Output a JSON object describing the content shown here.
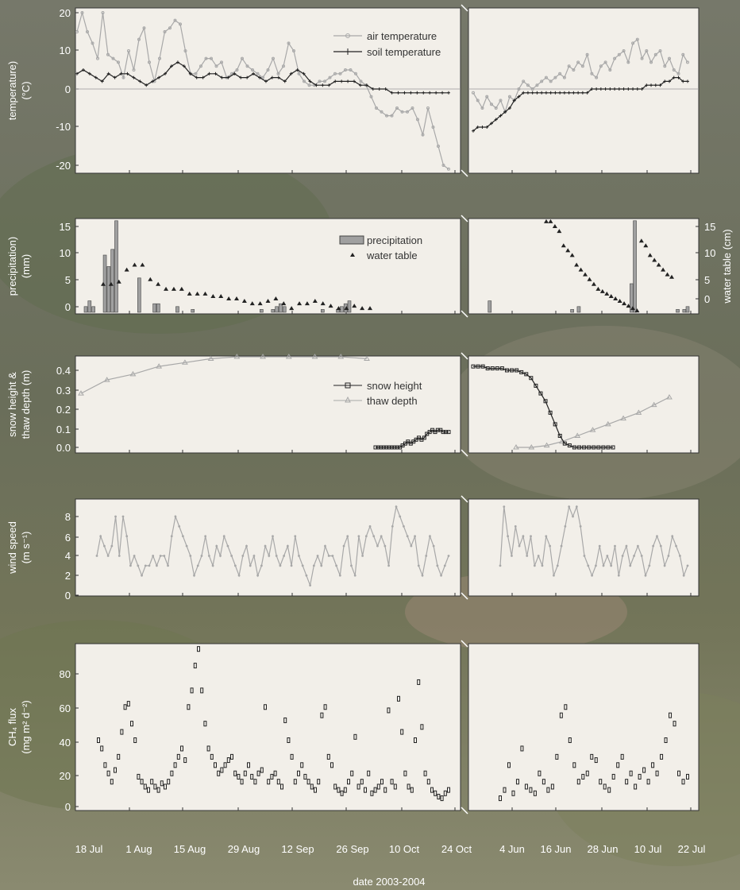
{
  "figure": {
    "xlabel": "date 2003-2004",
    "xticks_left": [
      "18 Jul",
      "1 Aug",
      "15 Aug",
      "29 Aug",
      "12 Sep",
      "26 Sep",
      "10 Oct",
      "24 Oct"
    ],
    "xticks_right": [
      "4 Jun",
      "16 Jun",
      "28 Jun",
      "10 Jul",
      "22 Jul"
    ],
    "colors": {
      "panel_bg": "#f2efe9",
      "gray_series": "#a8a8a8",
      "black_series": "#222222",
      "bar_fill": "#a0a0a0"
    }
  },
  "chart_data": [
    {
      "type": "line",
      "ylabel": [
        "temperature)",
        "(°C)"
      ],
      "yticks": [
        "20",
        "10",
        "0",
        "-10",
        "-20"
      ],
      "ylim": [
        -22,
        22
      ],
      "legend": [
        "air temperature",
        "soil temperature"
      ],
      "series": [
        {
          "name": "air temperature",
          "left": [
            15,
            20,
            15,
            12,
            8,
            20,
            9,
            8,
            7,
            3,
            10,
            5,
            13,
            16,
            7,
            2,
            8,
            15,
            16,
            18,
            17,
            10,
            4,
            4,
            6,
            8,
            8,
            6,
            7,
            3,
            4,
            5,
            8,
            6,
            5,
            4,
            3,
            5,
            8,
            4,
            6,
            12,
            10,
            4,
            2,
            1,
            1,
            2,
            2,
            3,
            4,
            4,
            5,
            5,
            4,
            2,
            1,
            -2,
            -5,
            -6,
            -7,
            -7,
            -5,
            -6,
            -6,
            -5,
            -8,
            -12,
            -5,
            -10,
            -15,
            -20,
            -21
          ],
          "right": [
            -1,
            -3,
            -5,
            -2,
            -4,
            -5,
            -3,
            -6,
            -2,
            -3,
            0,
            2,
            1,
            0,
            1,
            2,
            3,
            2,
            3,
            4,
            3,
            6,
            5,
            7,
            6,
            9,
            4,
            3,
            6,
            7,
            5,
            8,
            9,
            10,
            7,
            12,
            13,
            8,
            10,
            7,
            9,
            10,
            6,
            8,
            5,
            4,
            9,
            7
          ]
        },
        {
          "name": "soil temperature",
          "left": [
            4,
            5,
            4,
            3,
            2,
            4,
            3,
            4,
            4,
            3,
            2,
            1,
            2,
            3,
            4,
            6,
            7,
            6,
            4,
            3,
            3,
            4,
            4,
            3,
            3,
            4,
            3,
            3,
            4,
            3,
            2,
            3,
            3,
            2,
            4,
            5,
            4,
            2,
            1,
            1,
            1,
            2,
            2,
            2,
            2,
            1,
            1,
            0,
            0,
            0,
            -1,
            -1,
            -1,
            -1,
            -1,
            -1,
            -1,
            -1,
            -1,
            -1
          ],
          "right": [
            -11,
            -10,
            -10,
            -10,
            -9,
            -8,
            -7,
            -6,
            -5,
            -3,
            -2,
            -1,
            -1,
            -1,
            -1,
            -1,
            -1,
            -1,
            -1,
            -1,
            -1,
            -1,
            -1,
            -1,
            -1,
            -1,
            0,
            0,
            0,
            0,
            0,
            0,
            0,
            0,
            0,
            0,
            0,
            0,
            1,
            1,
            1,
            1,
            2,
            2,
            3,
            3,
            2,
            2
          ]
        }
      ]
    },
    {
      "type": "bar",
      "ylabel": [
        "precipitation)",
        "(mm)"
      ],
      "yticks": [
        "15",
        "10",
        "5",
        "0"
      ],
      "ylim": [
        0,
        17
      ],
      "y2label": "water table (cm)",
      "y2ticks": [
        "15",
        "10",
        "5",
        "0"
      ],
      "y2lim": [
        -5,
        17
      ],
      "legend": [
        "precipitation",
        "water table"
      ],
      "series": [
        {
          "name": "precipitation",
          "left": [
            1,
            2,
            1,
            0,
            0,
            10,
            8,
            11,
            16,
            0,
            0,
            0,
            0,
            0,
            6,
            0,
            0,
            0,
            1.5,
            1.5,
            0,
            0,
            0,
            0,
            1,
            0,
            0,
            0,
            0.5,
            0,
            0,
            0,
            0,
            0,
            0,
            0,
            0,
            0,
            0,
            0,
            0,
            0,
            0,
            0,
            0,
            0,
            0.5,
            0,
            0,
            0.5,
            1,
            1.5,
            1,
            0,
            0,
            0,
            0,
            0,
            0,
            0,
            0,
            0,
            0.5,
            0,
            0,
            0,
            0.5,
            1,
            1.5,
            2
          ],
          "right": [
            0,
            0,
            0,
            0,
            0,
            2,
            0,
            0,
            0,
            0,
            0,
            0,
            0,
            0,
            0,
            0,
            0,
            0,
            0,
            0,
            0,
            0,
            0,
            0,
            0,
            0,
            0,
            0,
            0,
            0,
            0.5,
            0,
            1,
            0,
            0,
            0,
            0,
            0,
            0,
            0,
            0,
            0,
            0,
            0,
            0,
            0,
            0,
            0,
            5,
            16,
            0,
            0,
            0,
            0,
            0,
            0,
            0,
            0,
            0,
            0,
            0,
            0,
            0.5,
            0,
            0.5,
            1
          ]
        },
        {
          "name": "water table",
          "left": [
            3,
            3,
            3.5,
            6,
            7,
            7,
            4,
            3,
            2,
            2,
            2,
            1,
            1,
            1,
            0.5,
            0.5,
            0,
            0,
            -0.5,
            -1,
            -1,
            -0.5,
            0,
            -1,
            -2,
            -1,
            -1,
            -0.5,
            -1,
            -1.5,
            -2,
            -2,
            -1.5,
            -2,
            -2
          ],
          "right": [
            16,
            16,
            15,
            14,
            11,
            10,
            9,
            7,
            6,
            5,
            4,
            3,
            2,
            1.5,
            1,
            0.5,
            0,
            -0.5,
            -1,
            -1.5,
            -2,
            -2.5,
            12,
            11,
            9,
            8,
            7,
            6,
            5,
            4.5
          ]
        }
      ]
    },
    {
      "type": "line",
      "ylabel": [
        "snow height &",
        "thaw depth (m)"
      ],
      "yticks": [
        "0.4",
        "0.3",
        "0.2",
        "0.1",
        "0.0"
      ],
      "ylim": [
        0,
        0.46
      ],
      "legend": [
        "snow height",
        "thaw depth"
      ],
      "series": [
        {
          "name": "snow height",
          "left": [
            0.0,
            0.0,
            0.0,
            0.0,
            0.0,
            0.0,
            0.0,
            0.0,
            0.0,
            0.0,
            0.01,
            0.02,
            0.03,
            0.02,
            0.03,
            0.04,
            0.05,
            0.04,
            0.05,
            0.07,
            0.08,
            0.09,
            0.08,
            0.09,
            0.09,
            0.08,
            0.08,
            0.08
          ],
          "right": [
            0.42,
            0.42,
            0.42,
            0.41,
            0.41,
            0.41,
            0.41,
            0.4,
            0.4,
            0.4,
            0.39,
            0.38,
            0.36,
            0.32,
            0.28,
            0.24,
            0.18,
            0.12,
            0.06,
            0.02,
            0.01,
            0.0,
            0.0,
            0.0,
            0.0,
            0.0,
            0.0,
            0.0,
            0.0,
            0.0
          ]
        },
        {
          "name": "thaw depth",
          "left": [
            0.28,
            0.35,
            0.38,
            0.42,
            0.44,
            0.46,
            0.47,
            0.47,
            0.47,
            0.47,
            0.47,
            0.46
          ],
          "right": [
            0.0,
            0.0,
            0.01,
            0.03,
            0.06,
            0.09,
            0.12,
            0.15,
            0.18,
            0.22,
            0.26
          ]
        }
      ]
    },
    {
      "type": "line",
      "ylabel": [
        "wind speed",
        "(m s⁻¹)"
      ],
      "yticks": [
        "8",
        "6",
        "4",
        "2",
        "0"
      ],
      "ylim": [
        0,
        10
      ],
      "series": [
        {
          "name": "wind speed",
          "left": [
            4,
            6,
            5,
            4,
            5,
            8,
            4,
            8,
            6,
            3,
            4,
            3,
            2,
            3,
            3,
            4,
            3,
            4,
            4,
            3,
            6,
            8,
            7,
            6,
            5,
            4,
            2,
            3,
            4,
            6,
            4,
            3,
            5,
            4,
            6,
            5,
            4,
            3,
            2,
            4,
            5,
            3,
            4,
            2,
            3,
            5,
            4,
            6,
            4,
            3,
            4,
            5,
            3,
            6,
            4,
            3,
            2,
            1,
            3,
            4,
            3,
            5,
            4,
            4,
            3,
            2,
            5,
            6,
            3,
            2,
            6,
            4,
            6,
            7,
            6,
            5,
            6,
            5,
            3,
            7,
            9,
            8,
            7,
            6,
            5,
            6,
            3,
            2,
            4,
            6,
            5,
            3,
            2,
            3,
            4
          ],
          "right": [
            3,
            9,
            6,
            4,
            7,
            5,
            6,
            4,
            6,
            3,
            4,
            3,
            6,
            5,
            2,
            3,
            5,
            7,
            9,
            8,
            9,
            7,
            4,
            3,
            2,
            3,
            5,
            3,
            4,
            3,
            5,
            2,
            4,
            5,
            3,
            4,
            5,
            4,
            2,
            3,
            5,
            6,
            5,
            3,
            4,
            6,
            5,
            4,
            2,
            3
          ]
        }
      ]
    },
    {
      "type": "scatter",
      "ylabel": [
        "CH₄ flux",
        "(mg m² d⁻²)"
      ],
      "yticks": [
        "80",
        "60",
        "40",
        "20",
        "0"
      ],
      "ylim": [
        0,
        95
      ],
      "series": [
        {
          "name": "CH4 flux",
          "left": [
            40,
            35,
            25,
            20,
            15,
            22,
            30,
            45,
            60,
            62,
            50,
            40,
            18,
            15,
            12,
            10,
            15,
            12,
            10,
            14,
            12,
            15,
            20,
            25,
            30,
            35,
            28,
            60,
            70,
            85,
            95,
            70,
            50,
            35,
            30,
            25,
            20,
            22,
            25,
            28,
            30,
            20,
            18,
            15,
            20,
            25,
            18,
            15,
            20,
            22,
            60,
            15,
            18,
            20,
            15,
            12,
            52,
            40,
            30,
            15,
            20,
            25,
            18,
            15,
            12,
            10,
            15,
            55,
            60,
            30,
            25,
            12,
            10,
            8,
            10,
            15,
            20,
            42,
            12,
            15,
            10,
            20,
            8,
            10,
            12,
            15,
            10,
            58,
            15,
            12,
            65,
            45,
            20,
            12,
            10,
            40,
            75,
            48,
            20,
            15,
            10,
            8,
            6,
            5,
            8,
            10
          ],
          "right": [
            5,
            10,
            25,
            8,
            15,
            35,
            12,
            10,
            8,
            20,
            15,
            10,
            12,
            30,
            55,
            60,
            40,
            25,
            15,
            18,
            20,
            30,
            28,
            15,
            12,
            10,
            18,
            25,
            30,
            15,
            20,
            12,
            18,
            22,
            15,
            25,
            20,
            30,
            40,
            55,
            50,
            20,
            15,
            18
          ]
        }
      ]
    }
  ]
}
